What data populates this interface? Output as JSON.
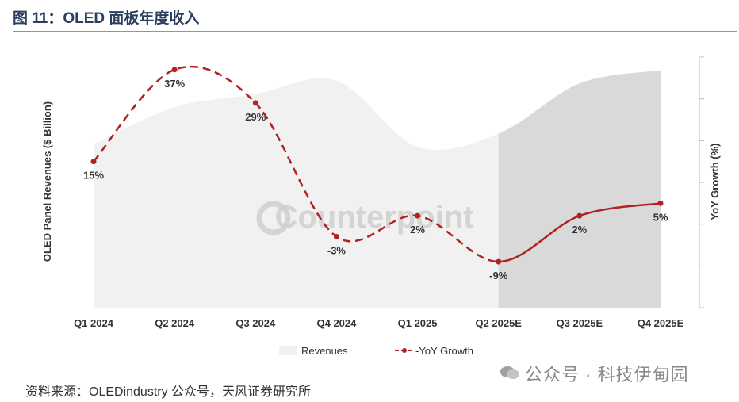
{
  "header": {
    "title": "图 11：OLED 面板年度收入"
  },
  "footer": {
    "source": "资料来源：OLEDindustry 公众号，天风证券研究所",
    "wechat_watermark": "公众号 · 科技伊甸园"
  },
  "watermark_text": "Counterpoint",
  "colors": {
    "revenue_area": "#f1f1f1",
    "forecast_area": "#d9d9d9",
    "yoy_line": "#b22222",
    "rule": "#d9843b"
  },
  "chart_data": {
    "type": "line",
    "categories": [
      "Q1 2024",
      "Q2 2024",
      "Q3 2024",
      "Q4 2024",
      "Q1 2025",
      "Q2 2025E",
      "Q3 2025E",
      "Q4 2025E"
    ],
    "ylabel": "OLED Panel Revenues ($ Billion)",
    "y2label": "YoY Growth (%)",
    "series": [
      {
        "name": "Revenues",
        "type": "area",
        "values": [
          6.2,
          7.6,
          8.1,
          8.6,
          6.1,
          6.6,
          8.5,
          9.0
        ]
      },
      {
        "name": "YoY Growth",
        "type": "line",
        "values": [
          15,
          37,
          29,
          -3,
          2,
          -9,
          2,
          5
        ],
        "labels": [
          "15%",
          "37%",
          "29%",
          "-3%",
          "2%",
          "-9%",
          "2%",
          "5%"
        ]
      }
    ],
    "ylim_revenue": [
      0,
      9.5
    ],
    "ylim_yoy": [
      -20,
      40
    ],
    "forecast_from": "Q2 2025E",
    "legend": [
      "Revenues",
      "YoY Growth"
    ],
    "legend_position": "bottom"
  }
}
